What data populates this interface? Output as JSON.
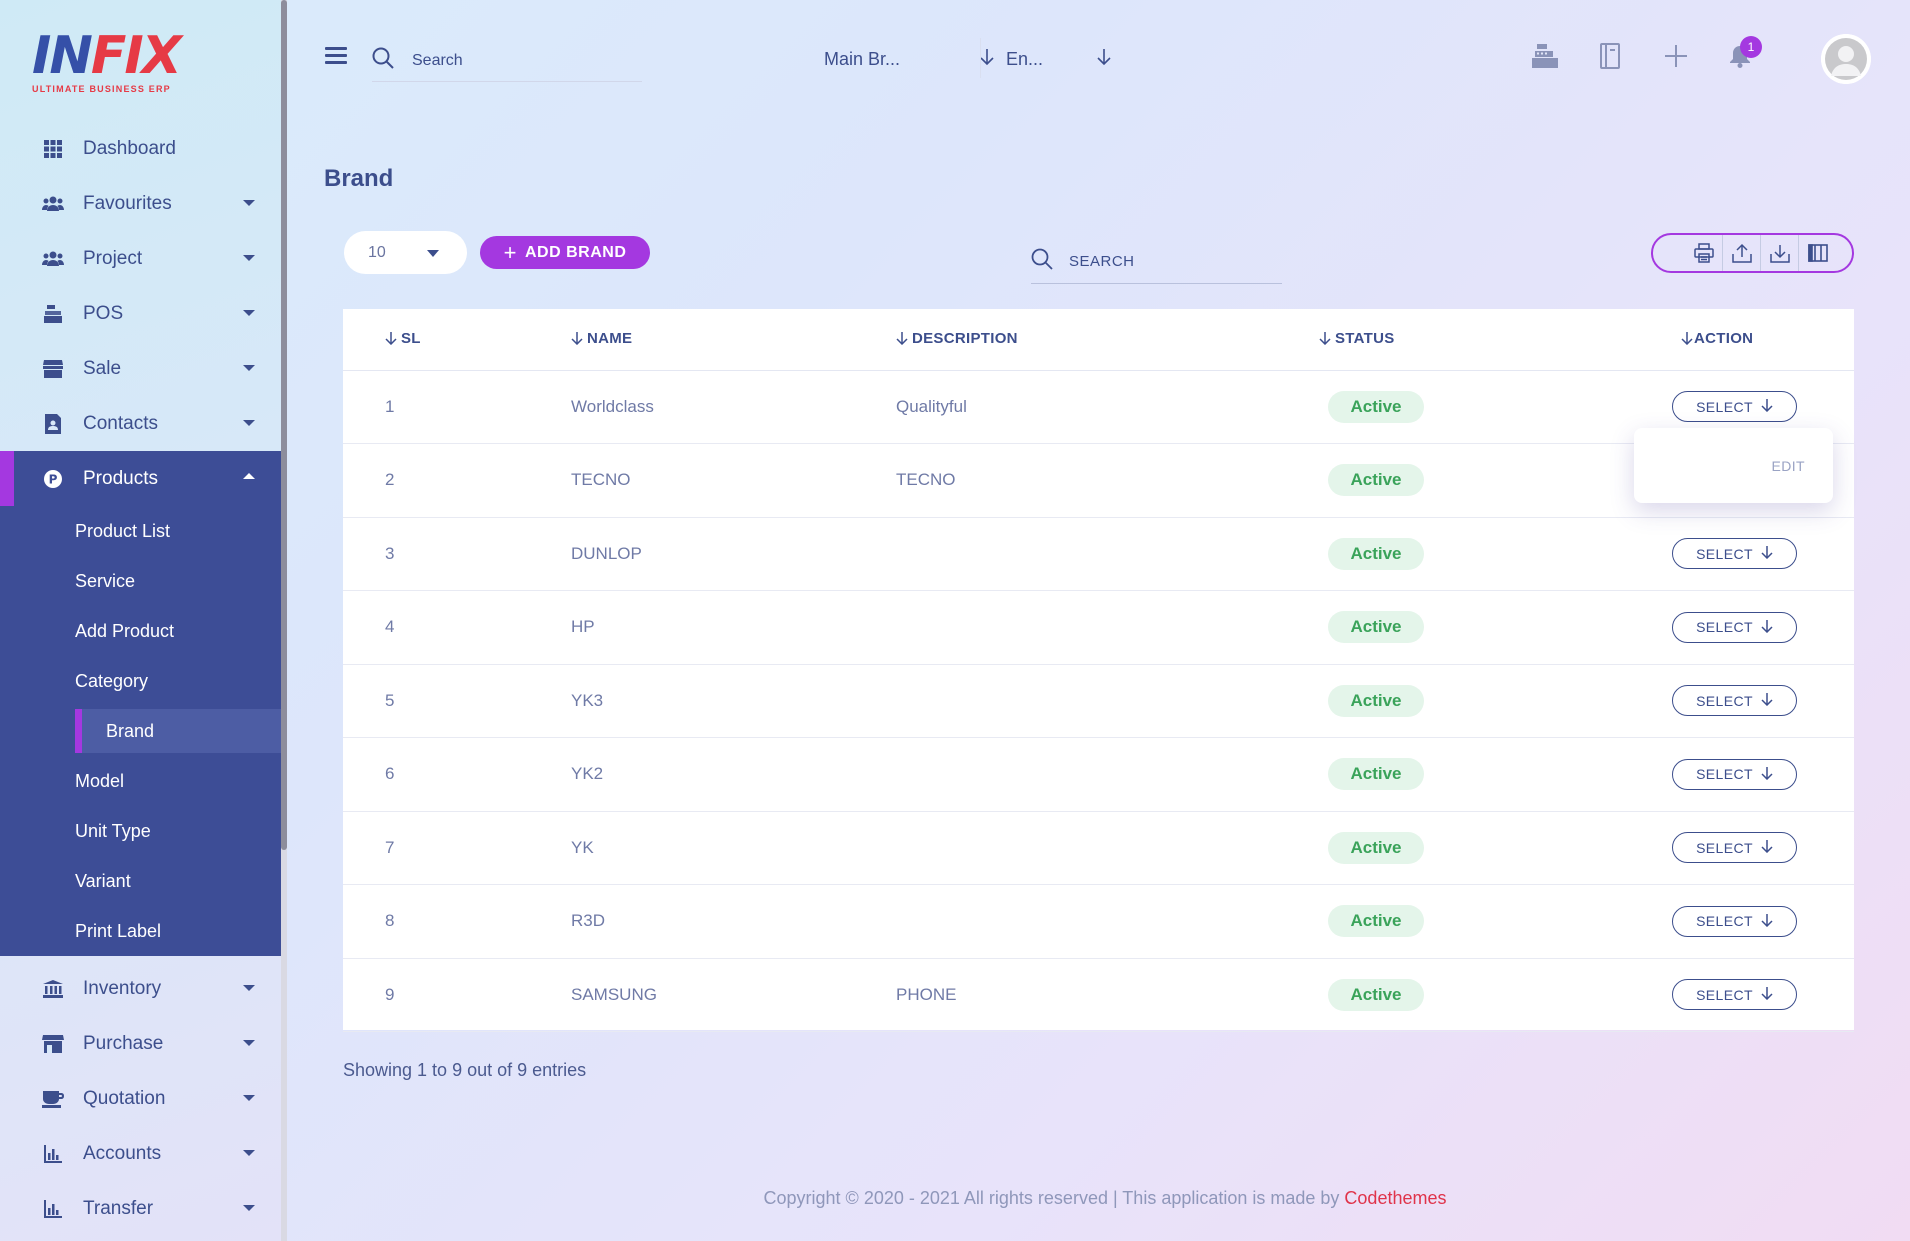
{
  "brand": {
    "logo_text_left": "I",
    "logo_text_mid": "N",
    "logo_text_right": "FIX",
    "tagline": "ULTIMATE BUSINESS ERP"
  },
  "sidebar": {
    "items": [
      {
        "label": "Dashboard",
        "icon": "grid-icon"
      },
      {
        "label": "Favourites",
        "icon": "users-icon"
      },
      {
        "label": "Project",
        "icon": "users-icon"
      },
      {
        "label": "POS",
        "icon": "cash-register-icon"
      },
      {
        "label": "Sale",
        "icon": "store-icon"
      },
      {
        "label": "Contacts",
        "icon": "contact-book-icon"
      },
      {
        "label": "Products",
        "icon": "product-p-icon"
      },
      {
        "label": "Inventory",
        "icon": "bank-icon"
      },
      {
        "label": "Purchase",
        "icon": "shop-icon"
      },
      {
        "label": "Quotation",
        "icon": "coffee-icon"
      },
      {
        "label": "Accounts",
        "icon": "bar-chart-icon"
      },
      {
        "label": "Transfer",
        "icon": "bar-chart-icon"
      }
    ],
    "products_submenu": [
      "Product List",
      "Service",
      "Add Product",
      "Category",
      "Brand",
      "Model",
      "Unit Type",
      "Variant",
      "Print Label"
    ]
  },
  "topbar": {
    "search_placeholder": "Search",
    "branch": "Main Br...",
    "language": "En...",
    "notification_count": "1"
  },
  "page": {
    "title": "Brand",
    "page_size": "10",
    "add_button": "ADD BRAND",
    "search_placeholder": "SEARCH",
    "showing": "Showing 1 to 9 out of 9 entries"
  },
  "table": {
    "headers": {
      "sl": "SL",
      "name": "NAME",
      "description": "DESCRIPTION",
      "status": "STATUS",
      "action": "ACTION"
    },
    "select_label": "SELECT",
    "edit_label": "EDIT",
    "rows": [
      {
        "sl": "1",
        "name": "Worldclass",
        "description": "Qualityful",
        "status": "Active"
      },
      {
        "sl": "2",
        "name": "TECNO",
        "description": "TECNO",
        "status": "Active"
      },
      {
        "sl": "3",
        "name": "DUNLOP",
        "description": "",
        "status": "Active"
      },
      {
        "sl": "4",
        "name": "HP",
        "description": "",
        "status": "Active"
      },
      {
        "sl": "5",
        "name": "YK3",
        "description": "",
        "status": "Active"
      },
      {
        "sl": "6",
        "name": "YK2",
        "description": "",
        "status": "Active"
      },
      {
        "sl": "7",
        "name": "YK",
        "description": "",
        "status": "Active"
      },
      {
        "sl": "8",
        "name": "R3D",
        "description": "",
        "status": "Active"
      },
      {
        "sl": "9",
        "name": "SAMSUNG",
        "description": "PHONE",
        "status": "Active"
      }
    ]
  },
  "footer": {
    "text": "Copyright © 2020 - 2021 All rights reserved | This application is made by ",
    "link": "Codethemes"
  },
  "colors": {
    "accent": "#a438e0",
    "sidebar_active": "#3d4d96",
    "status_green": "#3aa35a",
    "brand_red": "#e63a45"
  }
}
